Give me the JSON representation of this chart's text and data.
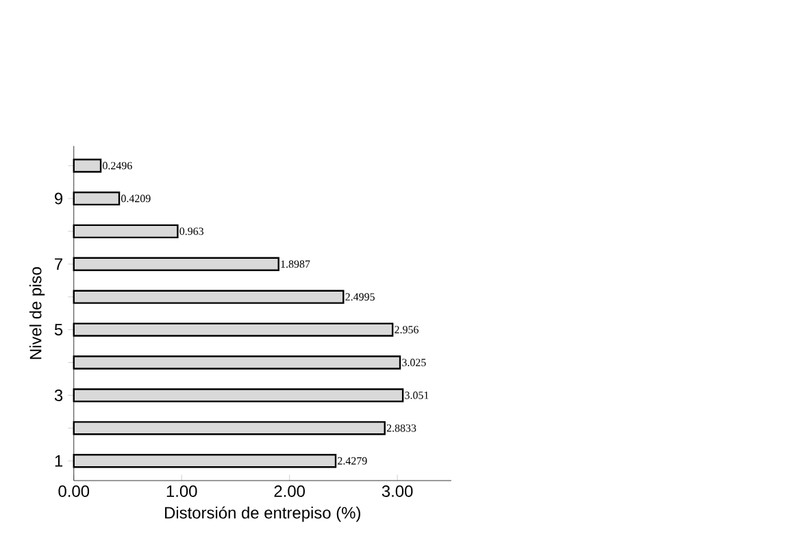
{
  "chart_data": {
    "type": "bar",
    "orientation": "horizontal",
    "xlabel": "Distorsión de entrepiso (%)",
    "ylabel": "Nivel de piso",
    "categories": [
      null,
      "9",
      null,
      "7",
      null,
      "5",
      null,
      "3",
      null,
      "1"
    ],
    "values": [
      0.2496,
      0.4209,
      0.963,
      1.8987,
      2.4995,
      2.956,
      3.025,
      3.051,
      2.8833,
      2.4279
    ],
    "color": "#d9d9d9",
    "data_labels": true,
    "xlim": [
      0,
      3.5
    ],
    "xticks": [
      {
        "value": 0,
        "label": "0.00"
      },
      {
        "value": 1,
        "label": "1.00"
      },
      {
        "value": 2,
        "label": "2.00"
      },
      {
        "value": 3,
        "label": "3.00"
      }
    ]
  }
}
